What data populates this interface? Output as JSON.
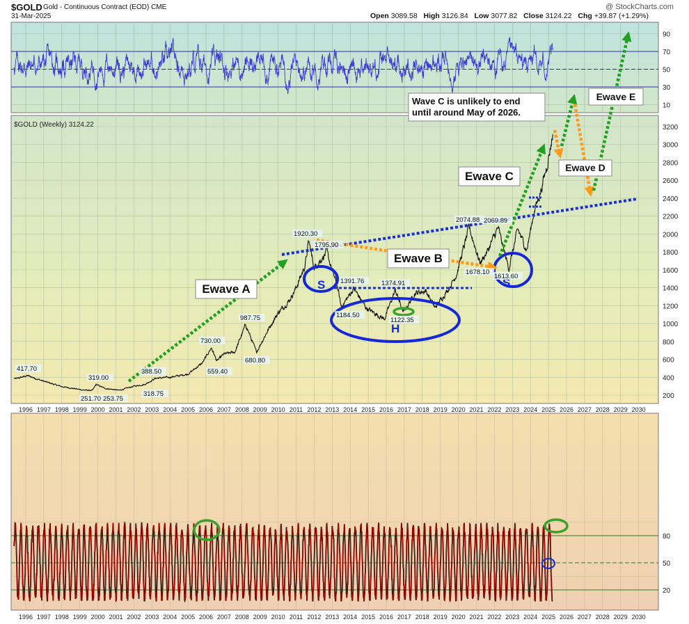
{
  "header": {
    "symbol": "$GOLD",
    "name": "Gold - Continuous Contract (EOD)",
    "exchange": "CME",
    "date": "31-Mar-2025",
    "watermark": "@ StockCharts.com",
    "open_label": "Open",
    "open": "3089.58",
    "high_label": "High",
    "high": "3126.84",
    "low_label": "Low",
    "low": "3077.82",
    "close_label": "Close",
    "close": "3124.22",
    "chg_label": "Chg",
    "chg": "+39.87 (+1.29%)"
  },
  "chart_data": [
    {
      "type": "line",
      "panel": "top-oscillator",
      "ylim": [
        0,
        100
      ],
      "y_ticks": [
        "90",
        "70",
        "50",
        "30",
        "10"
      ],
      "reference_lines": [
        70,
        50,
        30
      ],
      "line_color": "#3b3bd6",
      "note": "oscillator fluctuating roughly between 20 and 85"
    },
    {
      "type": "line",
      "panel": "price",
      "legend": "$GOLD (Weekly) 3124.22",
      "x_ticks": [
        "1996",
        "1997",
        "1998",
        "1999",
        "2000",
        "2001",
        "2002",
        "2003",
        "2004",
        "2005",
        "2006",
        "2007",
        "2008",
        "2009",
        "2010",
        "2011",
        "2012",
        "2013",
        "2014",
        "2015",
        "2016",
        "2017",
        "2018",
        "2019",
        "2020",
        "2021",
        "2022",
        "2023",
        "2024",
        "2025",
        "2026",
        "2027",
        "2028",
        "2029",
        "2030"
      ],
      "y_ticks": [
        "3200",
        "3000",
        "2800",
        "2600",
        "2400",
        "2200",
        "2000",
        "1800",
        "1600",
        "1400",
        "1200",
        "1000",
        "800",
        "600",
        "400",
        "200"
      ],
      "price_anchors": [
        {
          "t": 1995.5,
          "v": 385
        },
        {
          "t": 1996.1,
          "v": 417.7
        },
        {
          "t": 1997.0,
          "v": 355
        },
        {
          "t": 1998.0,
          "v": 295
        },
        {
          "t": 1999.2,
          "v": 257
        },
        {
          "t": 1999.7,
          "v": 251.7
        },
        {
          "t": 1999.9,
          "v": 319
        },
        {
          "t": 2000.4,
          "v": 275
        },
        {
          "t": 2001.2,
          "v": 253.75
        },
        {
          "t": 2002.0,
          "v": 300
        },
        {
          "t": 2002.6,
          "v": 318.75
        },
        {
          "t": 2003.2,
          "v": 388.5
        },
        {
          "t": 2004.0,
          "v": 400
        },
        {
          "t": 2005.0,
          "v": 435
        },
        {
          "t": 2005.8,
          "v": 559.4
        },
        {
          "t": 2006.3,
          "v": 730
        },
        {
          "t": 2006.6,
          "v": 580
        },
        {
          "t": 2007.0,
          "v": 660
        },
        {
          "t": 2007.6,
          "v": 680
        },
        {
          "t": 2008.2,
          "v": 987.75
        },
        {
          "t": 2008.8,
          "v": 680.8
        },
        {
          "t": 2009.5,
          "v": 950
        },
        {
          "t": 2010.0,
          "v": 1120
        },
        {
          "t": 2010.6,
          "v": 1250
        },
        {
          "t": 2011.0,
          "v": 1400
        },
        {
          "t": 2011.5,
          "v": 1650
        },
        {
          "t": 2011.7,
          "v": 1920.3
        },
        {
          "t": 2012.0,
          "v": 1620
        },
        {
          "t": 2012.7,
          "v": 1795.9
        },
        {
          "t": 2013.3,
          "v": 1400
        },
        {
          "t": 2013.5,
          "v": 1184.5
        },
        {
          "t": 2013.9,
          "v": 1300
        },
        {
          "t": 2014.2,
          "v": 1391.76
        },
        {
          "t": 2014.9,
          "v": 1170
        },
        {
          "t": 2015.9,
          "v": 1050
        },
        {
          "t": 2016.5,
          "v": 1374.91
        },
        {
          "t": 2016.95,
          "v": 1122.35
        },
        {
          "t": 2017.6,
          "v": 1340
        },
        {
          "t": 2018.2,
          "v": 1365
        },
        {
          "t": 2018.7,
          "v": 1175
        },
        {
          "t": 2019.5,
          "v": 1400
        },
        {
          "t": 2019.9,
          "v": 1550
        },
        {
          "t": 2020.6,
          "v": 2074.88
        },
        {
          "t": 2021.2,
          "v": 1678.1
        },
        {
          "t": 2021.6,
          "v": 1800
        },
        {
          "t": 2022.2,
          "v": 2069.89
        },
        {
          "t": 2022.8,
          "v": 1613.6
        },
        {
          "t": 2023.3,
          "v": 2050
        },
        {
          "t": 2023.8,
          "v": 1820
        },
        {
          "t": 2024.2,
          "v": 2250
        },
        {
          "t": 2024.6,
          "v": 2500
        },
        {
          "t": 2024.9,
          "v": 2750
        },
        {
          "t": 2025.25,
          "v": 3124.22
        }
      ],
      "price_labels": [
        "417.70",
        "319.00",
        "251.70",
        "253.75",
        "318.75",
        "388.50",
        "730.00",
        "559.40",
        "987.75",
        "680.80",
        "1920.30",
        "1795.90",
        "1391.76",
        "1184.50",
        "1374.91",
        "1122.35",
        "2074.88",
        "2069.89",
        "1678.10",
        "1613.60"
      ],
      "annotations": [
        {
          "text": "Ewave A",
          "kind": "callout"
        },
        {
          "text": "Ewave B",
          "kind": "callout"
        },
        {
          "text": "Ewave C",
          "kind": "callout"
        },
        {
          "text": "Ewave D",
          "kind": "callout"
        },
        {
          "text": "Ewave E",
          "kind": "callout"
        },
        {
          "text": "Wave C is unlikely to end until around May of 2026.",
          "kind": "note"
        },
        {
          "text": "S",
          "kind": "pattern"
        },
        {
          "text": "H",
          "kind": "pattern"
        },
        {
          "text": "S",
          "kind": "pattern"
        }
      ]
    },
    {
      "type": "line",
      "panel": "bottom-oscillator",
      "ylim": [
        0,
        100
      ],
      "y_ticks": [
        "80",
        "50",
        "20"
      ],
      "reference_lines": [
        80,
        50,
        20
      ],
      "line_color": "#b00000",
      "x_ticks": [
        "1996",
        "1997",
        "1998",
        "1999",
        "2000",
        "2001",
        "2002",
        "2003",
        "2004",
        "2005",
        "2006",
        "2007",
        "2008",
        "2009",
        "2010",
        "2011",
        "2012",
        "2013",
        "2014",
        "2015",
        "2016",
        "2017",
        "2018",
        "2019",
        "2020",
        "2021",
        "2022",
        "2023",
        "2024",
        "2025",
        "2026",
        "2027",
        "2028",
        "2029",
        "2030"
      ],
      "note": "fast stochastic-style oscillator swinging between roughly 10 and 90"
    }
  ],
  "annotations_text": {
    "ewave_a": "Ewave A",
    "ewave_b": "Ewave B",
    "ewave_c": "Ewave C",
    "ewave_d": "Ewave D",
    "ewave_e": "Ewave E",
    "note_line1": "Wave C is unlikely to end",
    "note_line2": "until around May of 2026.",
    "s_left": "S",
    "h_mid": "H",
    "s_right": "S"
  },
  "colors": {
    "green_arrow": "#22a022",
    "orange_arrow": "#ff9a1a",
    "blue_line": "#1a2ed6",
    "ellipse_blue": "#1428d8",
    "ellipse_green": "#3aa22a"
  }
}
